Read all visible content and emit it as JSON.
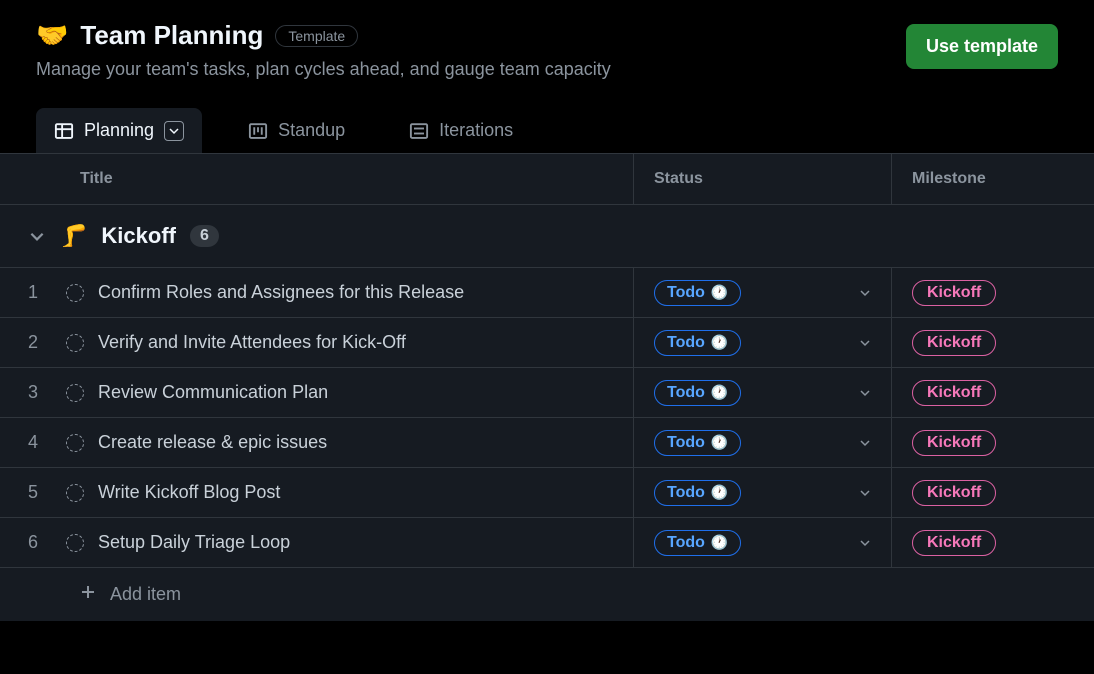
{
  "header": {
    "emoji": "🤝",
    "title": "Team Planning",
    "template_label": "Template",
    "subtitle": "Manage your team's tasks, plan cycles ahead, and gauge team capacity",
    "use_template_label": "Use template"
  },
  "tabs": [
    {
      "label": "Planning",
      "icon": "table",
      "active": true,
      "has_dropdown": true
    },
    {
      "label": "Standup",
      "icon": "board",
      "active": false,
      "has_dropdown": false
    },
    {
      "label": "Iterations",
      "icon": "list",
      "active": false,
      "has_dropdown": false
    }
  ],
  "columns": {
    "title": "Title",
    "status": "Status",
    "milestone": "Milestone"
  },
  "group": {
    "emoji": "🦵",
    "name": "Kickoff",
    "count": "6"
  },
  "rows": [
    {
      "num": "1",
      "title": "Confirm Roles and Assignees for this Release",
      "status": "Todo",
      "status_icon": "🕐",
      "milestone": "Kickoff"
    },
    {
      "num": "2",
      "title": "Verify and Invite Attendees for Kick-Off",
      "status": "Todo",
      "status_icon": "🕐",
      "milestone": "Kickoff"
    },
    {
      "num": "3",
      "title": "Review Communication Plan",
      "status": "Todo",
      "status_icon": "🕐",
      "milestone": "Kickoff"
    },
    {
      "num": "4",
      "title": "Create release & epic issues",
      "status": "Todo",
      "status_icon": "🕐",
      "milestone": "Kickoff"
    },
    {
      "num": "5",
      "title": "Write Kickoff Blog Post",
      "status": "Todo",
      "status_icon": "🕐",
      "milestone": "Kickoff"
    },
    {
      "num": "6",
      "title": "Setup Daily Triage Loop",
      "status": "Todo",
      "status_icon": "🕐",
      "milestone": "Kickoff"
    }
  ],
  "add_item_label": "Add item",
  "colors": {
    "bg": "#000000",
    "panel": "#161b22",
    "border": "#30363d",
    "text_primary": "#f0f6fc",
    "text_secondary": "#8b949e",
    "accent_green": "#238636",
    "status_border": "#1f6feb",
    "status_text": "#58a6ff",
    "milestone_border": "#db61a2",
    "milestone_text": "#f778ba"
  }
}
